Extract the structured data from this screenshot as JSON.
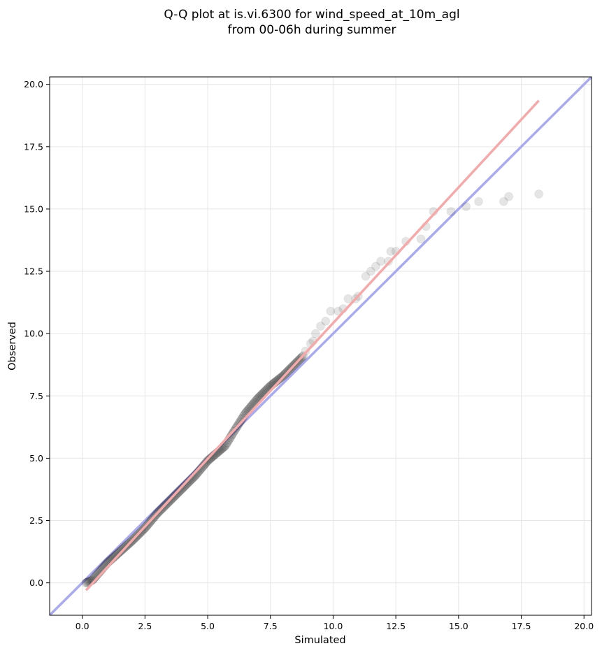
{
  "chart_data": {
    "type": "scatter",
    "title_line1": "Q-Q plot at is.vi.6300 for wind_speed_at_10m_agl",
    "title_line2": "from 00-06h during summer",
    "xlabel": "Simulated",
    "ylabel": "Observed",
    "xlim": [
      -1.3,
      20.3
    ],
    "ylim": [
      -1.3,
      20.3
    ],
    "xticks": [
      "0.0",
      "2.5",
      "5.0",
      "7.5",
      "10.0",
      "12.5",
      "15.0",
      "17.5",
      "20.0"
    ],
    "yticks": [
      "0.0",
      "2.5",
      "5.0",
      "7.5",
      "10.0",
      "12.5",
      "15.0",
      "17.5",
      "20.0"
    ],
    "grid": true,
    "colors": {
      "points": "#000000",
      "identity_line": "#aaaaee",
      "fit_line": "#f4aaaa"
    },
    "identity_line": {
      "x": [
        -1.3,
        20.3
      ],
      "y": [
        -1.3,
        20.3
      ]
    },
    "fit_line": {
      "x": [
        0.15,
        18.2
      ],
      "y": [
        -0.3,
        19.35
      ]
    },
    "outlier_points": {
      "x": [
        8.9,
        9.1,
        9.2,
        9.3,
        9.5,
        9.7,
        9.9,
        10.2,
        10.4,
        10.6,
        10.9,
        11.0,
        11.3,
        11.5,
        11.7,
        11.9,
        12.2,
        12.3,
        12.5,
        12.9,
        13.5,
        13.7,
        14.0,
        14.7,
        15.3,
        15.8,
        16.8,
        17.0,
        18.2
      ],
      "y": [
        9.3,
        9.6,
        9.7,
        10.0,
        10.3,
        10.5,
        10.9,
        10.9,
        11.0,
        11.4,
        11.4,
        11.5,
        12.3,
        12.5,
        12.7,
        12.9,
        12.9,
        13.3,
        13.3,
        13.7,
        13.8,
        14.3,
        14.9,
        14.9,
        15.1,
        15.3,
        15.3,
        15.5,
        15.6
      ]
    },
    "dense_quantiles": {
      "range": [
        0.15,
        8.8
      ],
      "sim_knots": [
        0.15,
        0.4,
        1.0,
        2.0,
        2.5,
        3.0,
        4.0,
        4.5,
        5.0,
        5.7,
        6.0,
        6.5,
        7.0,
        7.5,
        8.0,
        8.5,
        8.8
      ],
      "obs_knots": [
        0.0,
        0.1,
        0.8,
        1.7,
        2.2,
        2.8,
        3.8,
        4.3,
        4.9,
        5.5,
        6.0,
        6.8,
        7.4,
        7.9,
        8.3,
        8.8,
        9.1
      ]
    }
  }
}
